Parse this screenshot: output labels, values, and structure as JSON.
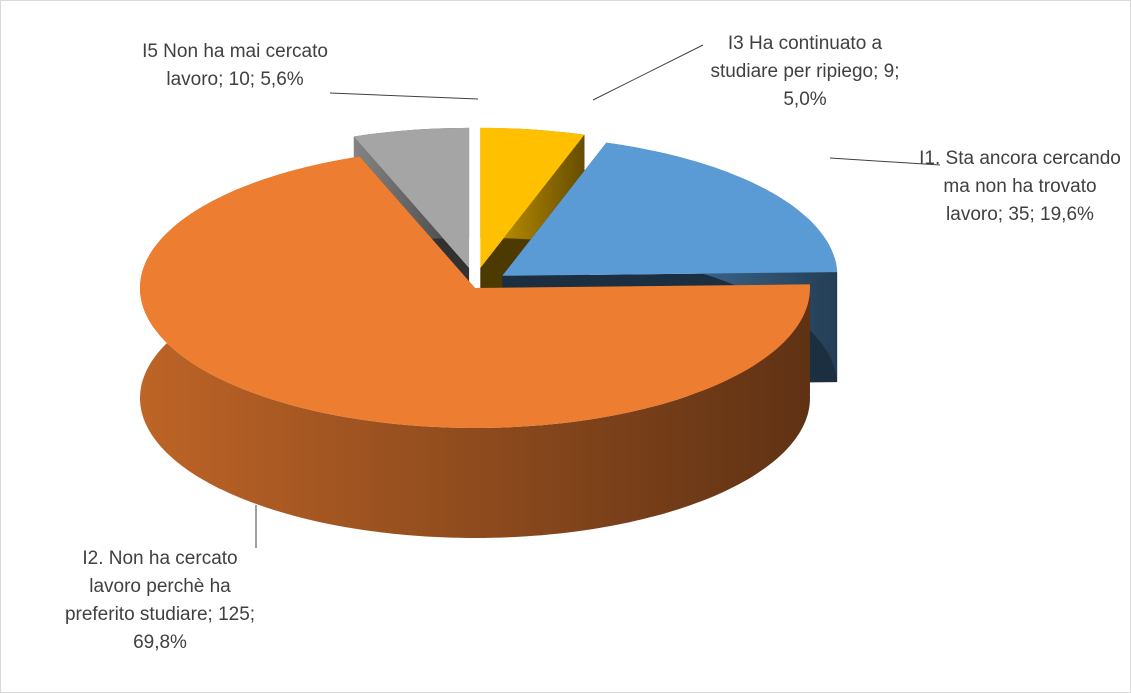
{
  "chart_data": {
    "type": "pie3d",
    "categories": [
      "I3 Ha continuato a studiare per ripiego",
      "I1. Sta ancora cercando ma non ha trovato lavoro",
      "I2. Non ha cercato lavoro perchè ha preferito studiare",
      "I5 Non ha mai cercato lavoro"
    ],
    "values": [
      9,
      35,
      125,
      10
    ],
    "value_labels": [
      "9; 5,0%",
      "35; 19,6%",
      "125; 69,8%",
      "10; 5,6%"
    ],
    "label_separator": "; ",
    "colors": [
      "#ffc000",
      "#5b9bd5",
      "#ed7d31",
      "#a5a5a5"
    ],
    "exploded": [
      true,
      true,
      false,
      true
    ]
  }
}
